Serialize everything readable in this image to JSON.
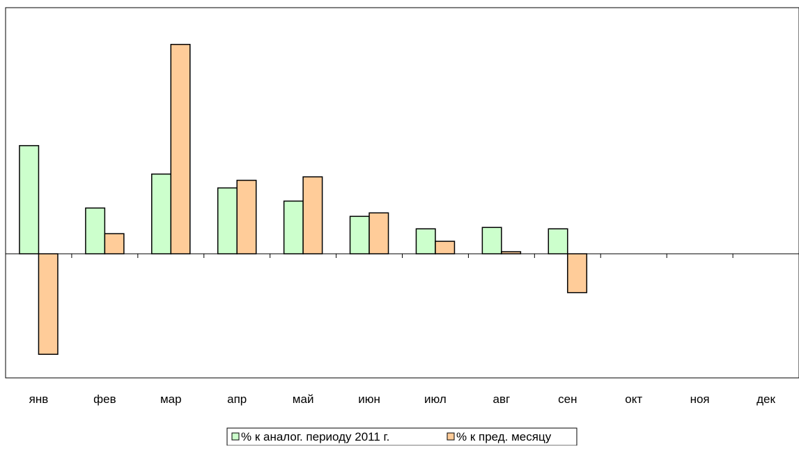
{
  "chart_data": {
    "type": "bar",
    "categories": [
      "янв",
      "фев",
      "мар",
      "апр",
      "май",
      "июн",
      "июл",
      "авг",
      "сен",
      "окт",
      "ноя",
      "дек"
    ],
    "series": [
      {
        "name": "% к аналог. периоду 2011 г.",
        "color": "#ccffcc",
        "values": [
          156,
          66,
          115,
          95,
          76,
          54,
          36,
          38,
          36,
          null,
          null,
          null
        ]
      },
      {
        "name": "% к пред. месяцу",
        "color": "#ffcc99",
        "values": [
          -145,
          29,
          302,
          106,
          111,
          59,
          18,
          3,
          -56,
          null,
          null,
          null
        ]
      }
    ],
    "title": "",
    "xlabel": "",
    "ylabel": "",
    "ylim": [
      -175,
      355
    ],
    "grid": false,
    "legend": "bottom-center"
  }
}
